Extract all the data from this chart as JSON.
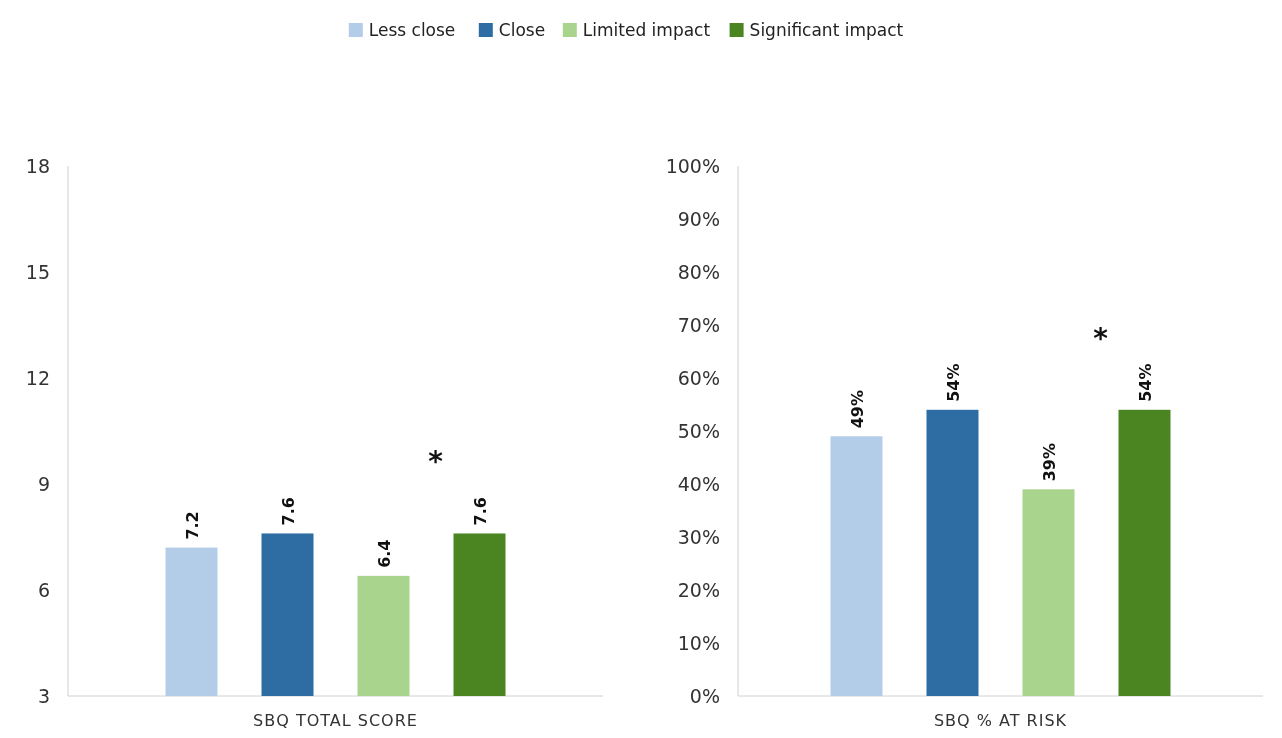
{
  "chart_data": [
    {
      "type": "bar",
      "categories": [
        "SBQ TOTAL SCORE"
      ],
      "legend": "top",
      "data_labels": true,
      "ylim": [
        3,
        18
      ],
      "yticks": [
        3,
        6,
        9,
        12,
        15,
        18
      ],
      "annotations": [
        "*"
      ],
      "series": [
        {
          "name": "Less close",
          "color": "#b3cde8",
          "values": [
            7.2
          ]
        },
        {
          "name": "Close",
          "color": "#2e6da4",
          "values": [
            7.6
          ]
        },
        {
          "name": "Limited impact",
          "color": "#a8d48e",
          "values": [
            6.4
          ]
        },
        {
          "name": "Significant impact",
          "color": "#4b8522",
          "values": [
            7.6
          ]
        }
      ]
    },
    {
      "type": "bar",
      "categories": [
        "SBQ % AT RISK"
      ],
      "ylim": [
        0,
        100
      ],
      "yticks": [
        {
          "value": 0,
          "label": "0%"
        },
        {
          "value": 10,
          "label": "10%"
        },
        {
          "value": 20,
          "label": "20%"
        },
        {
          "value": 30,
          "label": "30%"
        },
        {
          "value": 40,
          "label": "40%"
        },
        {
          "value": 50,
          "label": "50%"
        },
        {
          "value": 60,
          "label": "60%"
        },
        {
          "value": 70,
          "label": "70%"
        },
        {
          "value": 80,
          "label": "80%"
        },
        {
          "value": 90,
          "label": "90%"
        },
        {
          "value": 100,
          "label": "100%"
        }
      ],
      "annotations": [
        "*"
      ],
      "series": [
        {
          "color": "#b3cde8",
          "values": [
            49
          ],
          "value_labels": [
            "49%"
          ]
        },
        {
          "color": "#2e6da4",
          "values": [
            54
          ],
          "value_labels": [
            "54%"
          ]
        },
        {
          "color": "#a8d48e",
          "values": [
            39
          ],
          "value_labels": [
            "39%"
          ]
        },
        {
          "color": "#4b8522",
          "values": [
            54
          ],
          "value_labels": [
            "54%"
          ]
        }
      ]
    }
  ]
}
